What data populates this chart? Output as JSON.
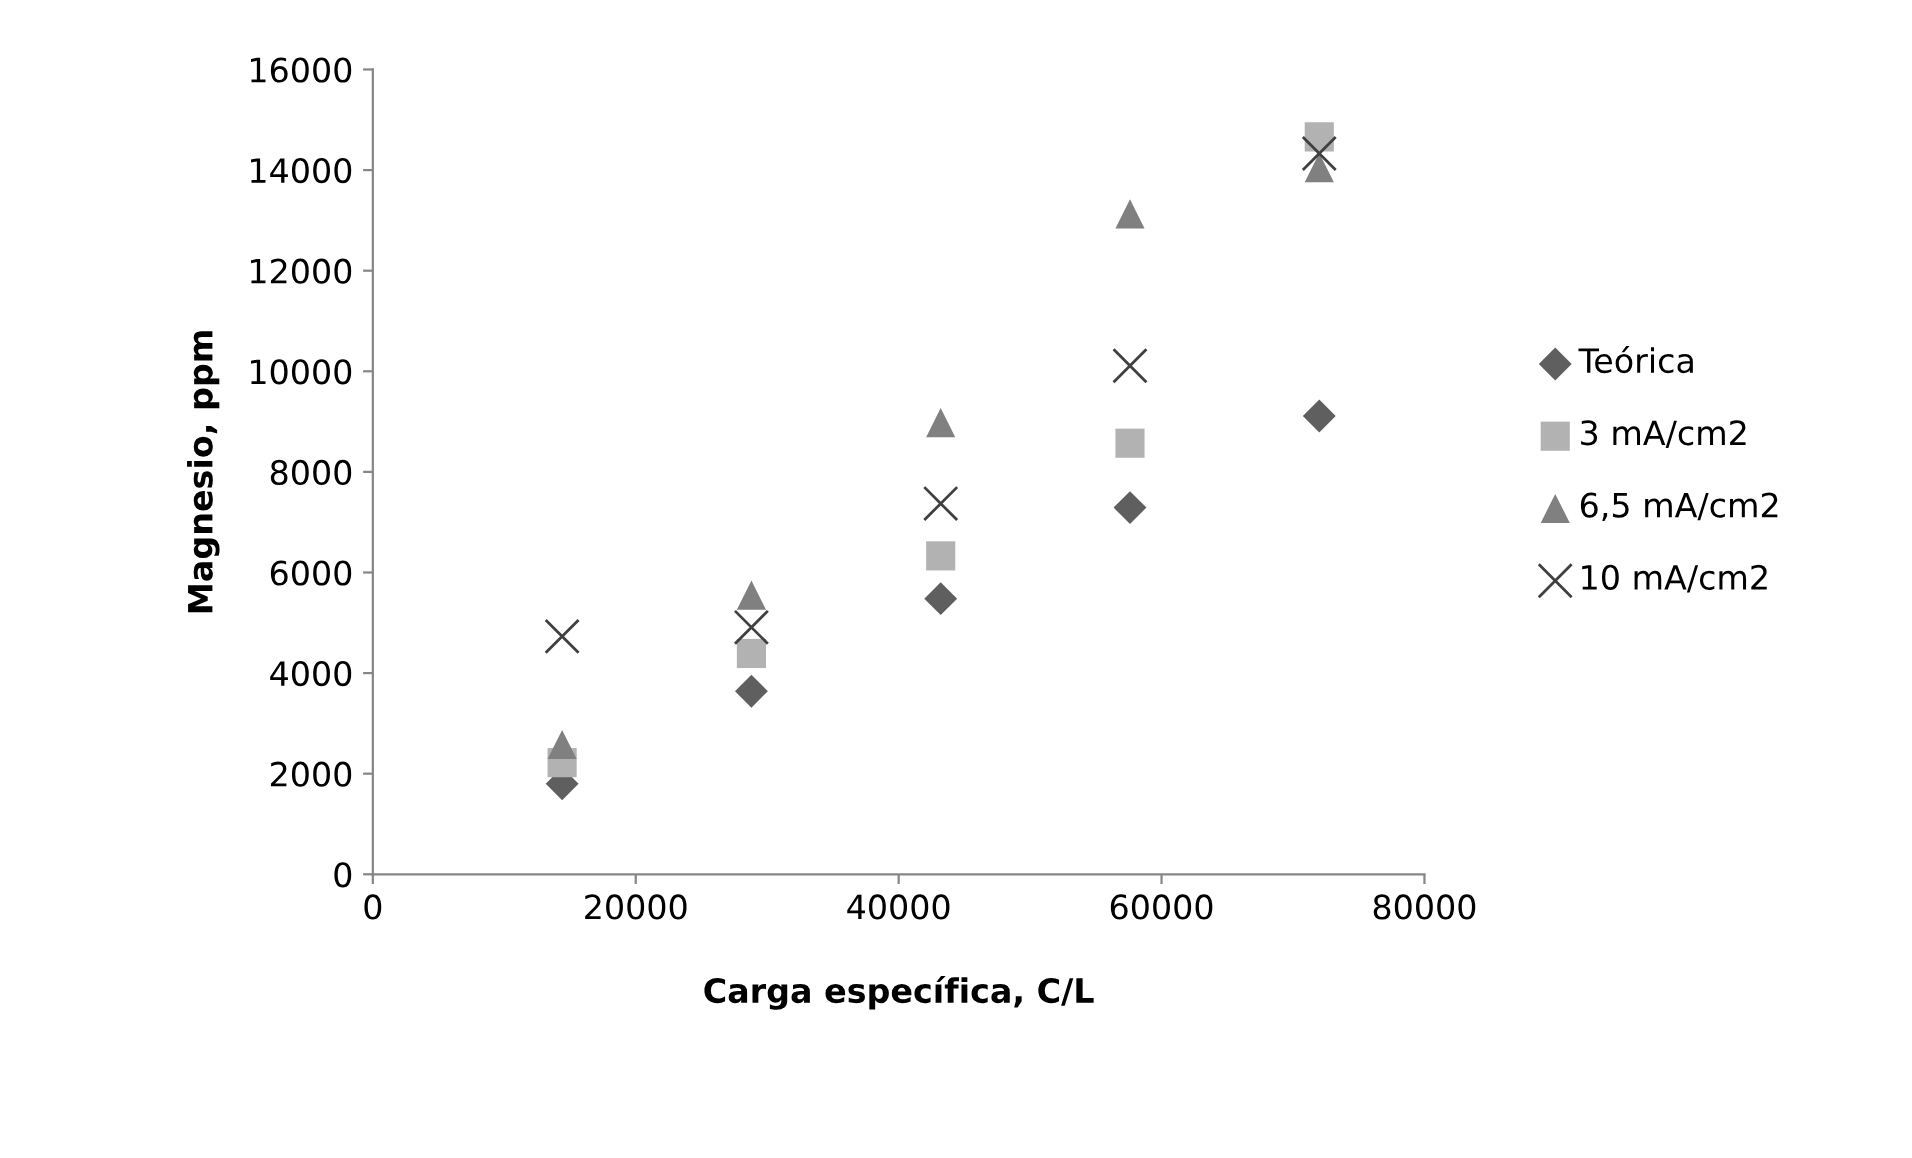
{
  "chart_data": {
    "type": "scatter",
    "xlabel": "Carga específica, C/L",
    "ylabel": "Magnesio, ppm",
    "x": [
      14400,
      28800,
      43200,
      57600,
      72000
    ],
    "series": [
      {
        "name": "Teórica",
        "color": "#5f5f5f",
        "marker": "diamond",
        "values": [
          1800,
          3640,
          5480,
          7290,
          9110
        ]
      },
      {
        "name": "3 mA/cm2",
        "color": "#b2b2b2",
        "marker": "square",
        "values": [
          2220,
          4390,
          6330,
          8570,
          14660
        ]
      },
      {
        "name": "6,5 mA/cm2",
        "color": "#808080",
        "marker": "triangle",
        "values": [
          2580,
          5550,
          8980,
          13130,
          14050
        ]
      },
      {
        "name": "10 mA/cm2",
        "color": "#404040",
        "marker": "cross",
        "values": [
          4730,
          4910,
          7370,
          10110,
          14330
        ]
      }
    ],
    "xlim": [
      0,
      80000
    ],
    "xticks": [
      0,
      20000,
      40000,
      60000,
      80000
    ],
    "ylim": [
      0,
      16000
    ],
    "yticks": [
      0,
      2000,
      4000,
      6000,
      8000,
      10000,
      12000,
      14000,
      16000
    ],
    "grid": false,
    "legend": "right"
  }
}
